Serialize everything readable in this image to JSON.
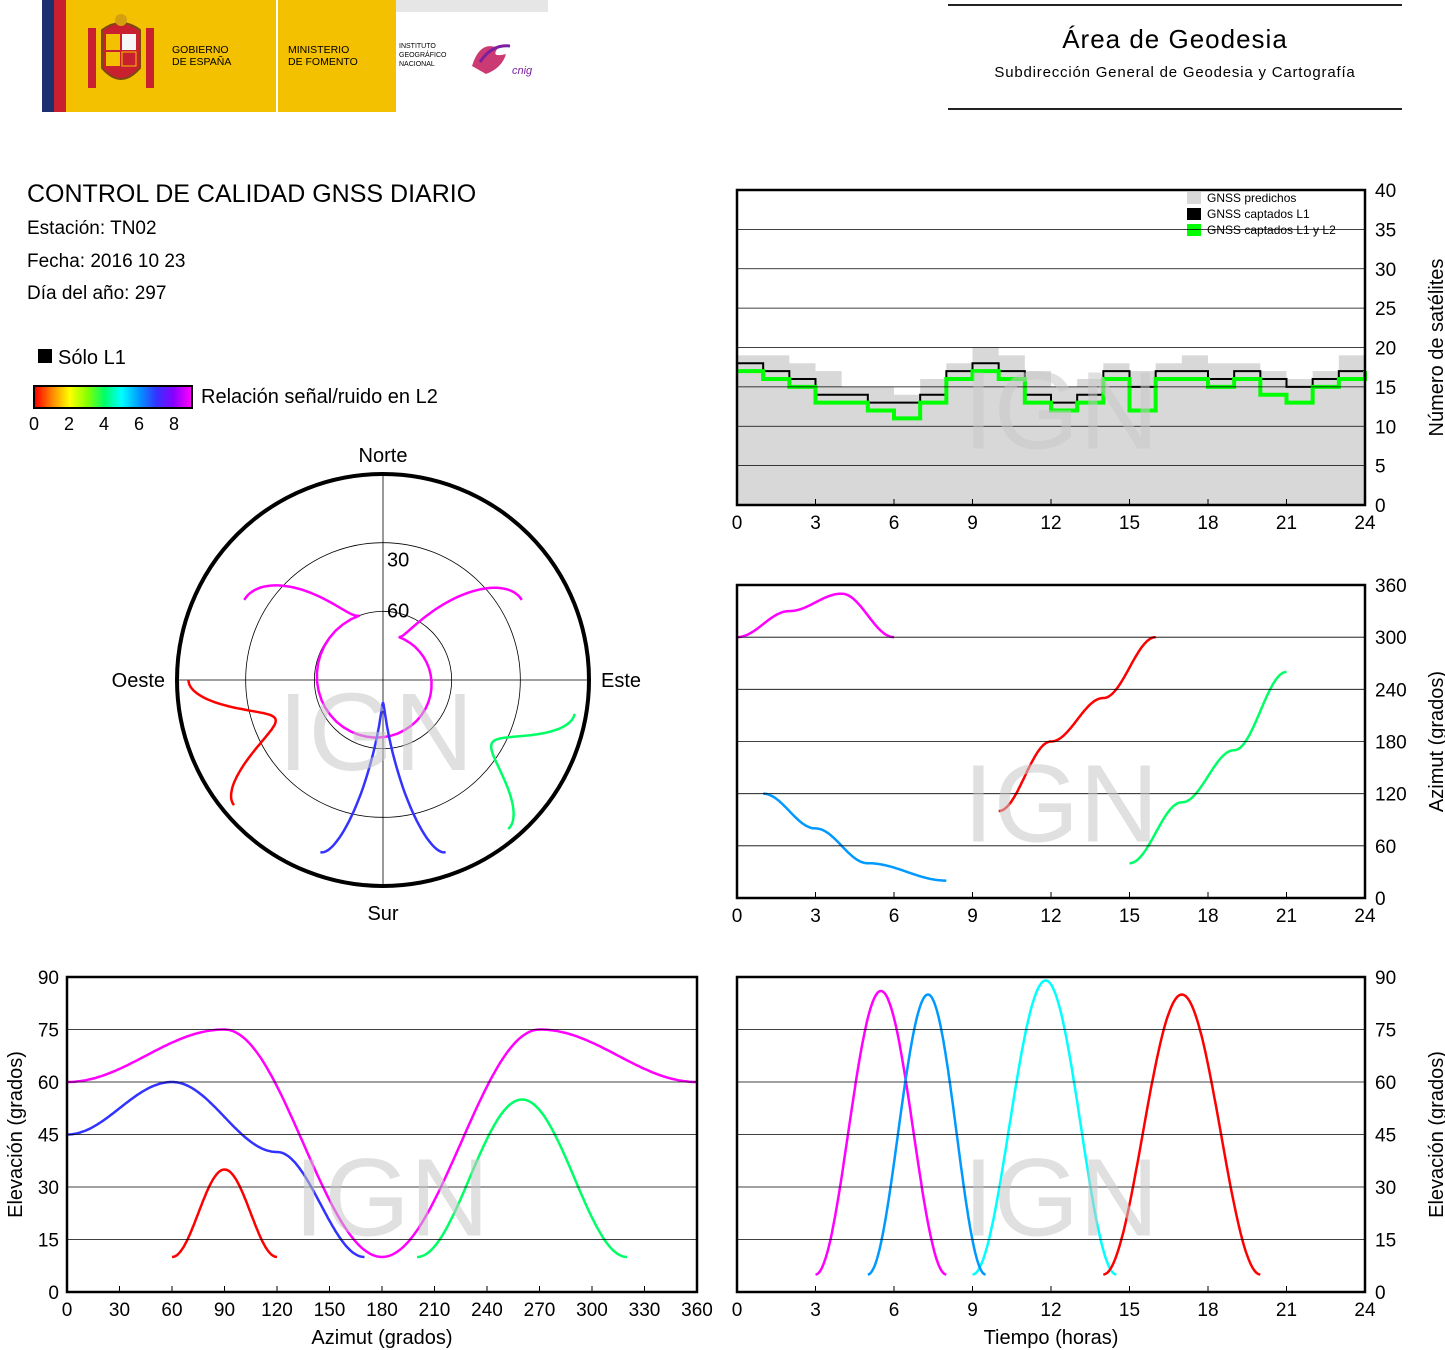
{
  "header": {
    "gobierno": [
      "GOBIERNO",
      "DE ESPAÑA"
    ],
    "ministerio": [
      "MINISTERIO",
      "DE FOMENTO"
    ],
    "instituto": [
      "INSTITUTO",
      "GEOGRÁFICO",
      "NACIONAL"
    ],
    "cnig": "cnig",
    "area_title": "Área de Geodesia",
    "area_subtitle": "Subdirección General de Geodesia y Cartografía"
  },
  "report": {
    "title": "CONTROL DE CALIDAD GNSS DIARIO",
    "station": "Estación: TN02",
    "date": "Fecha: 2016 10 23",
    "doy": "Día del año: 297"
  },
  "legend": {
    "l1_only": "Sólo L1",
    "snr_label": "Relación señal/ruido en L2",
    "snr_ticks": [
      "0",
      "2",
      "4",
      "6",
      "8"
    ],
    "snr_colors": [
      "#ff0000",
      "#ff8800",
      "#ffff00",
      "#88ff00",
      "#00ff66",
      "#00ffff",
      "#0099ff",
      "#3333ff",
      "#8800ff",
      "#ff00ff"
    ]
  },
  "watermark": "IGN",
  "chart_data": [
    {
      "type": "area",
      "id": "satellites",
      "ylabel": "Número de satélites",
      "xlim": [
        0,
        24
      ],
      "ylim": [
        0,
        40
      ],
      "xticks": [
        "0",
        "3",
        "6",
        "9",
        "12",
        "15",
        "18",
        "21",
        "24"
      ],
      "yticks": [
        "0",
        "5",
        "10",
        "15",
        "20",
        "25",
        "30",
        "35",
        "40"
      ],
      "grid": true,
      "legend_position": "top-right",
      "series": [
        {
          "name": "GNSS predichos",
          "color": "#d8d8d8",
          "x": [
            0,
            1,
            2,
            3,
            4,
            5,
            6,
            7,
            8,
            9,
            10,
            11,
            12,
            13,
            14,
            15,
            16,
            17,
            18,
            19,
            20,
            21,
            22,
            23,
            24
          ],
          "values": [
            19,
            19,
            18,
            17,
            15,
            15,
            14,
            16,
            18,
            20,
            19,
            17,
            15,
            16,
            18,
            17,
            18,
            19,
            18,
            18,
            17,
            16,
            17,
            19,
            18
          ]
        },
        {
          "name": "GNSS captados L1",
          "color": "#000000",
          "x": [
            0,
            1,
            2,
            3,
            4,
            5,
            6,
            7,
            8,
            9,
            10,
            11,
            12,
            13,
            14,
            15,
            16,
            17,
            18,
            19,
            20,
            21,
            22,
            23,
            24
          ],
          "values": [
            18,
            17,
            16,
            14,
            14,
            13,
            13,
            14,
            17,
            18,
            17,
            14,
            13,
            14,
            17,
            15,
            17,
            17,
            16,
            17,
            16,
            15,
            16,
            17,
            18
          ]
        },
        {
          "name": "GNSS captados L1 y L2",
          "color": "#00ff00",
          "x": [
            0,
            1,
            2,
            3,
            4,
            5,
            6,
            7,
            8,
            9,
            10,
            11,
            12,
            13,
            14,
            15,
            16,
            17,
            18,
            19,
            20,
            21,
            22,
            23,
            24
          ],
          "values": [
            17,
            16,
            15,
            13,
            13,
            12,
            11,
            13,
            16,
            17,
            16,
            13,
            12,
            13,
            16,
            12,
            16,
            16,
            15,
            16,
            14,
            13,
            15,
            16,
            17
          ]
        }
      ]
    },
    {
      "type": "scatter",
      "id": "azimuth-time",
      "ylabel": "Azimut (grados)",
      "xlim": [
        0,
        24
      ],
      "ylim": [
        0,
        360
      ],
      "xticks": [
        "0",
        "3",
        "6",
        "9",
        "12",
        "15",
        "18",
        "21",
        "24"
      ],
      "yticks": [
        "0",
        "60",
        "120",
        "180",
        "240",
        "300",
        "360"
      ],
      "grid": true,
      "series": [
        {
          "color": "#ff00ff",
          "x": [
            0,
            2,
            4,
            6
          ],
          "values": [
            300,
            330,
            350,
            300
          ]
        },
        {
          "color": "#0099ff",
          "x": [
            1,
            3,
            5,
            8
          ],
          "values": [
            120,
            80,
            40,
            20
          ]
        },
        {
          "color": "#ff0000",
          "x": [
            10,
            12,
            14,
            16
          ],
          "values": [
            100,
            180,
            230,
            300
          ]
        },
        {
          "color": "#00ff66",
          "x": [
            15,
            17,
            19,
            21
          ],
          "values": [
            40,
            110,
            170,
            260
          ]
        }
      ]
    },
    {
      "type": "scatter",
      "id": "skyplot",
      "labels": {
        "north": "Norte",
        "south": "Sur",
        "east": "Este",
        "west": "Oeste"
      },
      "ring_labels": [
        "30",
        "60"
      ],
      "series": [
        {
          "color": "#ff00ff",
          "azimuth": [
            300,
            340,
            20,
            60
          ],
          "elevation": [
            20,
            60,
            70,
            20
          ]
        },
        {
          "color": "#3333ff",
          "azimuth": [
            200,
            180,
            160
          ],
          "elevation": [
            10,
            80,
            10
          ]
        },
        {
          "color": "#ff0000",
          "azimuth": [
            230,
            250,
            270
          ],
          "elevation": [
            5,
            40,
            5
          ]
        },
        {
          "color": "#00ff66",
          "azimuth": [
            100,
            120,
            140
          ],
          "elevation": [
            5,
            35,
            5
          ]
        }
      ]
    },
    {
      "type": "scatter",
      "id": "elevation-azimuth",
      "xlabel": "Azimut (grados)",
      "ylabel": "Elevación (grados)",
      "xlim": [
        0,
        360
      ],
      "ylim": [
        0,
        90
      ],
      "xticks": [
        "0",
        "30",
        "60",
        "90",
        "120",
        "150",
        "180",
        "210",
        "240",
        "270",
        "300",
        "330",
        "360"
      ],
      "yticks": [
        "0",
        "15",
        "30",
        "45",
        "60",
        "75",
        "90"
      ],
      "grid": true,
      "series": [
        {
          "color": "#ff00ff",
          "x": [
            0,
            90,
            180,
            270,
            360
          ],
          "values": [
            60,
            75,
            10,
            75,
            60
          ]
        },
        {
          "color": "#3333ff",
          "x": [
            0,
            60,
            120,
            170
          ],
          "values": [
            45,
            60,
            40,
            10
          ]
        },
        {
          "color": "#ff0000",
          "x": [
            60,
            90,
            120
          ],
          "values": [
            10,
            35,
            10
          ]
        },
        {
          "color": "#00ff66",
          "x": [
            200,
            260,
            320
          ],
          "values": [
            10,
            55,
            10
          ]
        }
      ]
    },
    {
      "type": "scatter",
      "id": "elevation-time",
      "xlabel": "Tiempo (horas)",
      "ylabel": "Elevación (grados)",
      "xlim": [
        0,
        24
      ],
      "ylim": [
        0,
        90
      ],
      "xticks": [
        "0",
        "3",
        "6",
        "9",
        "12",
        "15",
        "18",
        "21",
        "24"
      ],
      "yticks": [
        "0",
        "15",
        "30",
        "45",
        "60",
        "75",
        "90"
      ],
      "grid": true,
      "series": [
        {
          "color": "#ff00ff",
          "x": [
            3,
            5.5,
            8
          ],
          "values": [
            5,
            86,
            5
          ]
        },
        {
          "color": "#00ffff",
          "x": [
            9,
            11.8,
            14.5
          ],
          "values": [
            5,
            89,
            5
          ]
        },
        {
          "color": "#0099ff",
          "x": [
            5,
            7.3,
            9.5
          ],
          "values": [
            5,
            85,
            5
          ]
        },
        {
          "color": "#ff0000",
          "x": [
            14,
            17,
            20
          ],
          "values": [
            5,
            85,
            5
          ]
        }
      ]
    }
  ]
}
